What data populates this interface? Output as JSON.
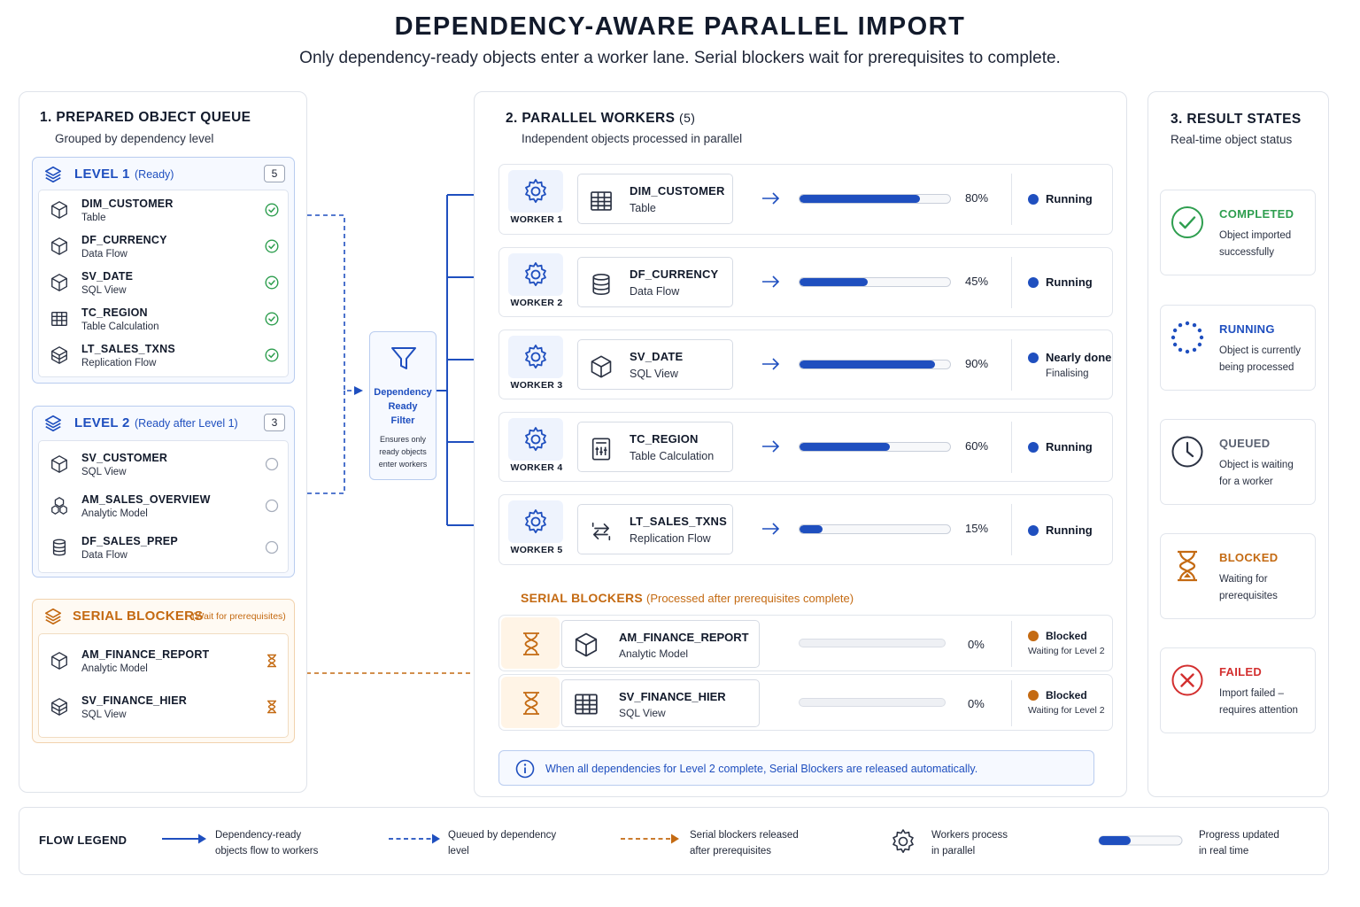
{
  "header": {
    "title": "DEPENDENCY-AWARE PARALLEL IMPORT",
    "subtitle": "Only dependency-ready objects enter a worker lane. Serial blockers wait for prerequisites to complete."
  },
  "queue": {
    "title": "1. PREPARED OBJECT QUEUE",
    "subtitle": "Grouped by dependency level",
    "level1": {
      "title": "LEVEL 1",
      "note": "(Ready)",
      "count": "5",
      "items": [
        {
          "name": "DIM_CUSTOMER",
          "type": "Table"
        },
        {
          "name": "DF_CURRENCY",
          "type": "Data Flow"
        },
        {
          "name": "SV_DATE",
          "type": "SQL View"
        },
        {
          "name": "TC_REGION",
          "type": "Table Calculation"
        },
        {
          "name": "LT_SALES_TXNS",
          "type": "Replication Flow"
        }
      ]
    },
    "level2": {
      "title": "LEVEL 2",
      "note": "(Ready after Level 1)",
      "count": "3",
      "items": [
        {
          "name": "SV_CUSTOMER",
          "type": "SQL View"
        },
        {
          "name": "AM_SALES_OVERVIEW",
          "type": "Analytic Model"
        },
        {
          "name": "DF_SALES_PREP",
          "type": "Data Flow"
        }
      ]
    },
    "blockers": {
      "title": "SERIAL BLOCKERS",
      "note": "(Wait for prerequisites)",
      "items": [
        {
          "name": "AM_FINANCE_REPORT",
          "type": "Analytic Model"
        },
        {
          "name": "SV_FINANCE_HIER",
          "type": "SQL View"
        }
      ]
    }
  },
  "filter": {
    "title_line1": "Dependency",
    "title_line2": "Ready",
    "title_line3": "Filter",
    "note_line1": "Ensures only",
    "note_line2": "ready objects",
    "note_line3": "enter workers"
  },
  "workers": {
    "title": "2. PARALLEL WORKERS",
    "count": "(5)",
    "subtitle": "Independent objects processed in parallel",
    "rows": [
      {
        "label": "WORKER 1",
        "name": "DIM_CUSTOMER",
        "type": "Table",
        "progress": 80,
        "pct": "80%",
        "status": "Running",
        "status_sub": ""
      },
      {
        "label": "WORKER 2",
        "name": "DF_CURRENCY",
        "type": "Data Flow",
        "progress": 45,
        "pct": "45%",
        "status": "Running",
        "status_sub": ""
      },
      {
        "label": "WORKER 3",
        "name": "SV_DATE",
        "type": "SQL View",
        "progress": 90,
        "pct": "90%",
        "status": "Nearly done",
        "status_sub": "Finalising"
      },
      {
        "label": "WORKER 4",
        "name": "TC_REGION",
        "type": "Table Calculation",
        "progress": 60,
        "pct": "60%",
        "status": "Running",
        "status_sub": ""
      },
      {
        "label": "WORKER 5",
        "name": "LT_SALES_TXNS",
        "type": "Replication Flow",
        "progress": 15,
        "pct": "15%",
        "status": "Running",
        "status_sub": ""
      }
    ],
    "blockers_title": "SERIAL BLOCKERS",
    "blockers_note": "(Processed after prerequisites complete)",
    "blocker_rows": [
      {
        "name": "AM_FINANCE_REPORT",
        "type": "Analytic Model",
        "progress": 0,
        "pct": "0%",
        "status": "Blocked",
        "status_sub": "Waiting for Level 2"
      },
      {
        "name": "SV_FINANCE_HIER",
        "type": "SQL View",
        "progress": 0,
        "pct": "0%",
        "status": "Blocked",
        "status_sub": "Waiting for Level 2"
      }
    ],
    "info": "When all dependencies for Level 2 complete, Serial Blockers are released automatically."
  },
  "results": {
    "title": "3. RESULT STATES",
    "subtitle": "Real-time object status",
    "states": [
      {
        "title": "COMPLETED",
        "line1": "Object imported",
        "line2": "successfully",
        "color": "#2e9e4f",
        "icon": "check-circle-icon"
      },
      {
        "title": "RUNNING",
        "line1": "Object is currently",
        "line2": "being processed",
        "color": "#1f4fbf",
        "icon": "spinner-icon"
      },
      {
        "title": "QUEUED",
        "line1": "Object is waiting",
        "line2": "for a worker",
        "color": "#5b6272",
        "icon": "clock-icon"
      },
      {
        "title": "BLOCKED",
        "line1": "Waiting for",
        "line2": "prerequisites",
        "color": "#c46a12",
        "icon": "hourglass-icon"
      },
      {
        "title": "FAILED",
        "line1": "Import failed –",
        "line2": "requires attention",
        "color": "#d32f2f",
        "icon": "x-circle-icon"
      }
    ]
  },
  "legend": {
    "title": "FLOW LEGEND",
    "items": [
      {
        "line1": "Dependency-ready",
        "line2": "objects flow to workers"
      },
      {
        "line1": "Queued by dependency",
        "line2": "level"
      },
      {
        "line1": "Serial blockers released",
        "line2": "after prerequisites"
      },
      {
        "line1": "Workers process",
        "line2": "in parallel"
      },
      {
        "line1": "Progress updated",
        "line2": "in real time"
      }
    ]
  },
  "colors": {
    "blue": "#1f4fbf",
    "orange": "#c46a12",
    "green": "#2e9e4f",
    "red": "#d32f2f"
  }
}
